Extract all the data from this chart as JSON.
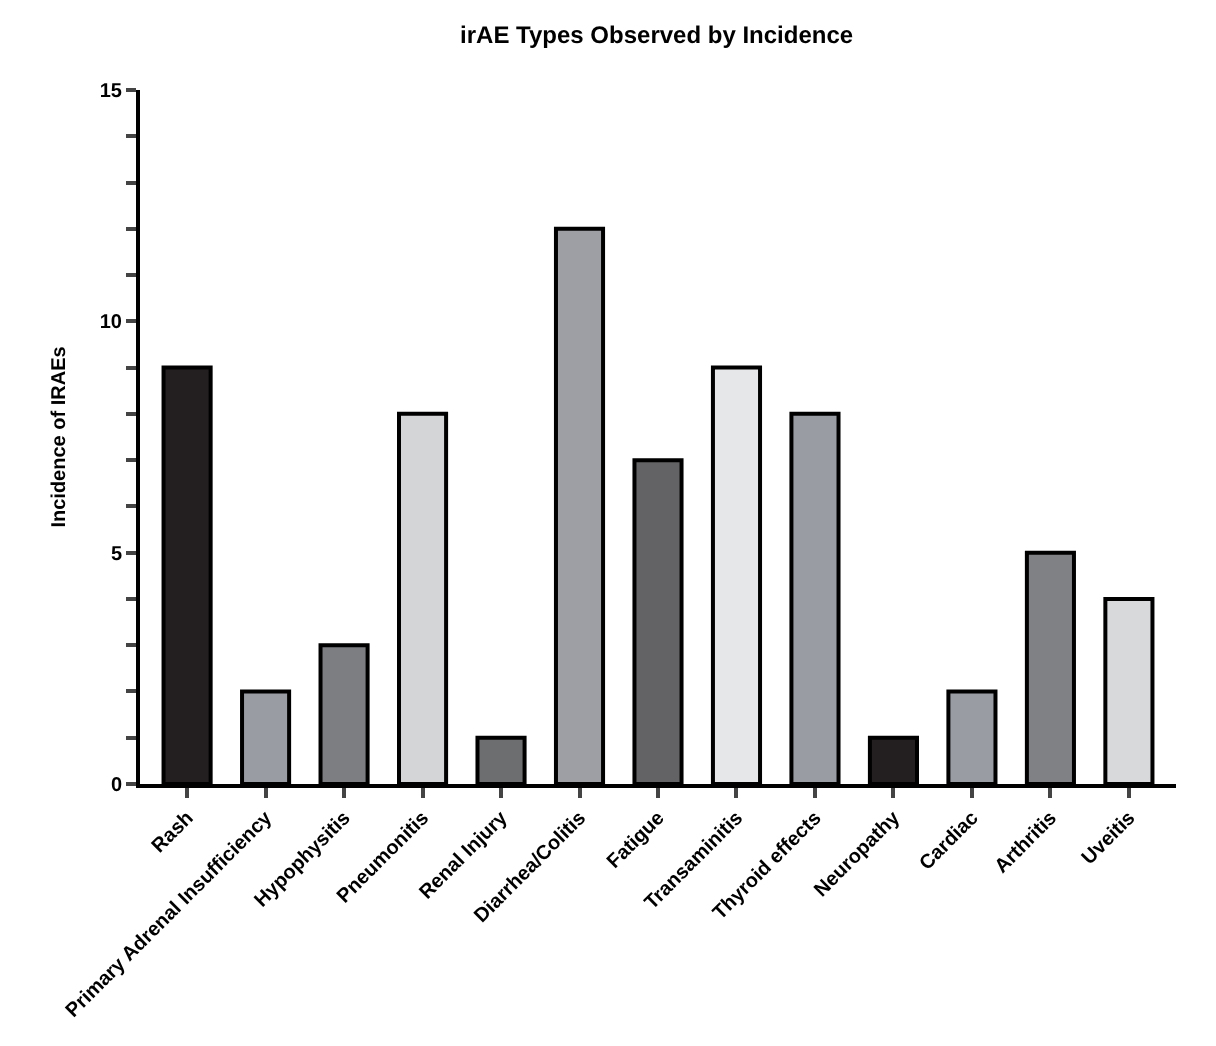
{
  "chart_data": {
    "type": "bar",
    "title": "irAE Types Observed by Incidence",
    "ylabel": "Incidence of IRAEs",
    "categories": [
      "Rash",
      "Primary Adrenal Insufficiency",
      "Hypophysitis",
      "Pneumonitis",
      "Renal Injury",
      "Diarrhea/Colitis",
      "Fatigue",
      "Transaminitis",
      "Thyroid effects",
      "Neuropathy",
      "Cardiac",
      "Arthritis",
      "Uveitis"
    ],
    "values": [
      9,
      2,
      3,
      8,
      1,
      12,
      7,
      9,
      8,
      1,
      2,
      5,
      4
    ],
    "colors": [
      "#231f20",
      "#9a9ca3",
      "#7d7e82",
      "#d4d5d7",
      "#6d6e70",
      "#9d9fa5",
      "#636365",
      "#e6e7e9",
      "#9a9ca3",
      "#231f20",
      "#9a9ca3",
      "#808184",
      "#d8d9db"
    ],
    "ylim": [
      0,
      15
    ],
    "yticks": [
      0,
      {
        "value": 1,
        "label": null
      },
      {
        "value": 2,
        "label": null
      },
      {
        "value": 3,
        "label": null
      },
      {
        "value": 4,
        "label": null
      },
      5,
      {
        "value": 6,
        "label": null
      },
      {
        "value": 7,
        "label": null
      },
      {
        "value": 8,
        "label": null
      },
      {
        "value": 9,
        "label": null
      },
      10,
      {
        "value": 11,
        "label": null
      },
      {
        "value": 12,
        "label": null
      },
      {
        "value": 13,
        "label": null
      },
      {
        "value": 14,
        "label": null
      },
      15
    ]
  }
}
